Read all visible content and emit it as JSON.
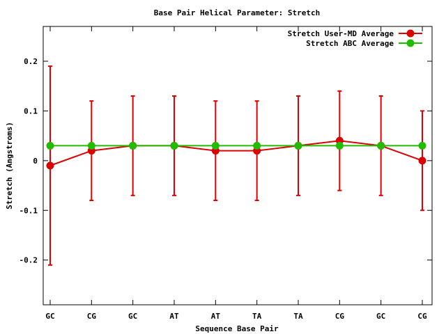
{
  "chart_data": {
    "type": "line",
    "title": "Base Pair Helical Parameter: Stretch",
    "xlabel": "Sequence Base Pair",
    "ylabel": "Stretch (Angstroms)",
    "categories": [
      "GC",
      "CG",
      "GC",
      "AT",
      "AT",
      "TA",
      "TA",
      "CG",
      "GC",
      "CG"
    ],
    "ylim": [
      -0.29,
      0.27
    ],
    "yticks": [
      -0.2,
      -0.1,
      0,
      0.1,
      0.2
    ],
    "ytick_labels": [
      "-0.2",
      "-0.1",
      "0",
      "0.1",
      "0.2"
    ],
    "grid": false,
    "legend_position": "top-right",
    "series": [
      {
        "name": "Stretch User-MD Average",
        "color": "#dd0000",
        "values": [
          -0.01,
          0.02,
          0.03,
          0.03,
          0.02,
          0.02,
          0.03,
          0.04,
          0.03,
          0.0
        ],
        "error_low": [
          -0.21,
          -0.08,
          -0.07,
          -0.07,
          -0.08,
          -0.08,
          -0.07,
          -0.06,
          -0.07,
          -0.1
        ],
        "error_high": [
          0.19,
          0.12,
          0.13,
          0.13,
          0.12,
          0.12,
          0.13,
          0.14,
          0.13,
          0.1
        ]
      },
      {
        "name": "Stretch ABC Average",
        "color": "#22bb00",
        "values": [
          0.03,
          0.03,
          0.03,
          0.03,
          0.03,
          0.03,
          0.03,
          0.03,
          0.03,
          0.03
        ]
      }
    ]
  }
}
